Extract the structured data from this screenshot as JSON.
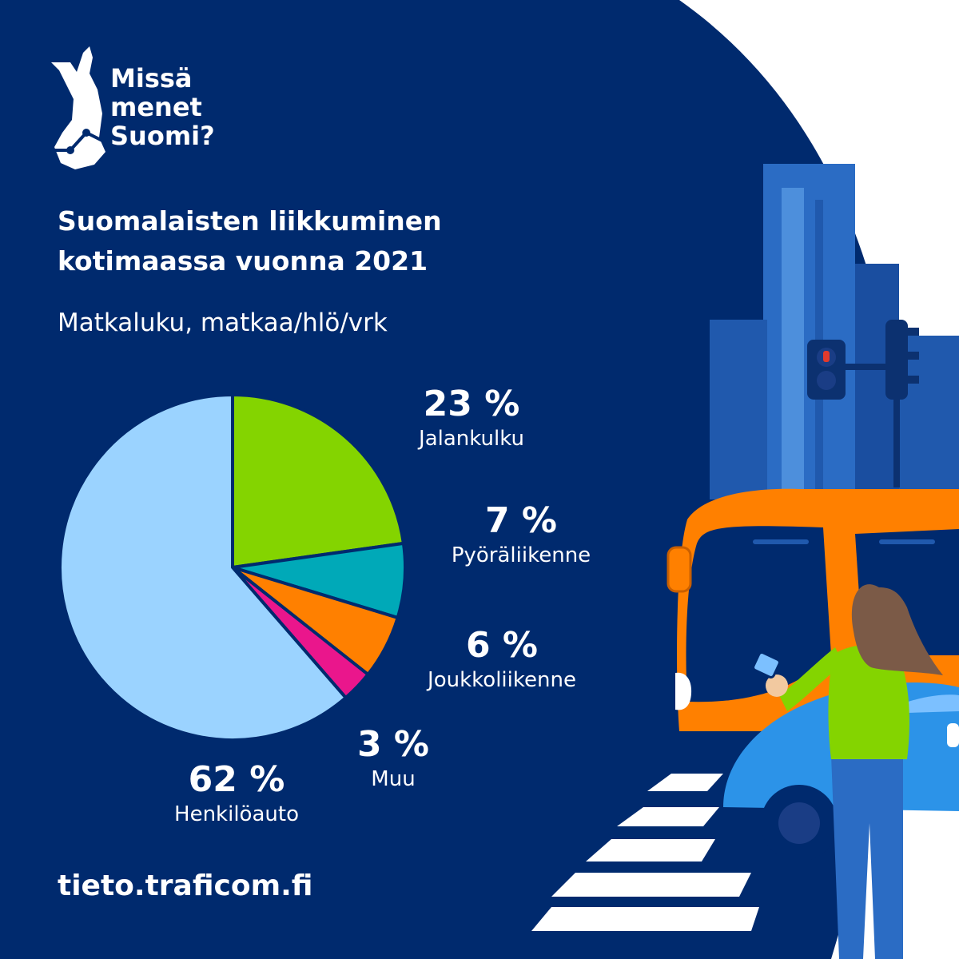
{
  "logo": {
    "line1": "Missä",
    "line2": "menet",
    "line3": "Suomi?"
  },
  "title_line1": "Suomalaisten liikkuminen",
  "title_line2": "kotimaassa vuonna 2021",
  "subtitle": "Matkaluku, matkaa/hlö/vrk",
  "footer": "tieto.traficom.fi",
  "colors": {
    "background": "#002a6e",
    "Jalankulku": "#84d400",
    "Pyöräliikenne": "#00a9b8",
    "Joukkoliikenne": "#ff8000",
    "Muu": "#ea168c",
    "Henkilöauto": "#9bd3ff"
  },
  "icons": [
    "finland-map-logo-icon",
    "traffic-light-icon",
    "bus-icon",
    "car-icon",
    "woman-with-phone-icon",
    "buildings-icon",
    "crosswalk-icon"
  ],
  "chart_data": {
    "type": "pie",
    "unit": "%",
    "slices": [
      {
        "label": "Jalankulku",
        "value": 23,
        "value_label": "23 %"
      },
      {
        "label": "Pyöräliikenne",
        "value": 7,
        "value_label": "7 %"
      },
      {
        "label": "Joukkoliikenne",
        "value": 6,
        "value_label": "6 %"
      },
      {
        "label": "Muu",
        "value": 3,
        "value_label": "3 %"
      },
      {
        "label": "Henkilöauto",
        "value": 62,
        "value_label": "62 %"
      }
    ]
  }
}
